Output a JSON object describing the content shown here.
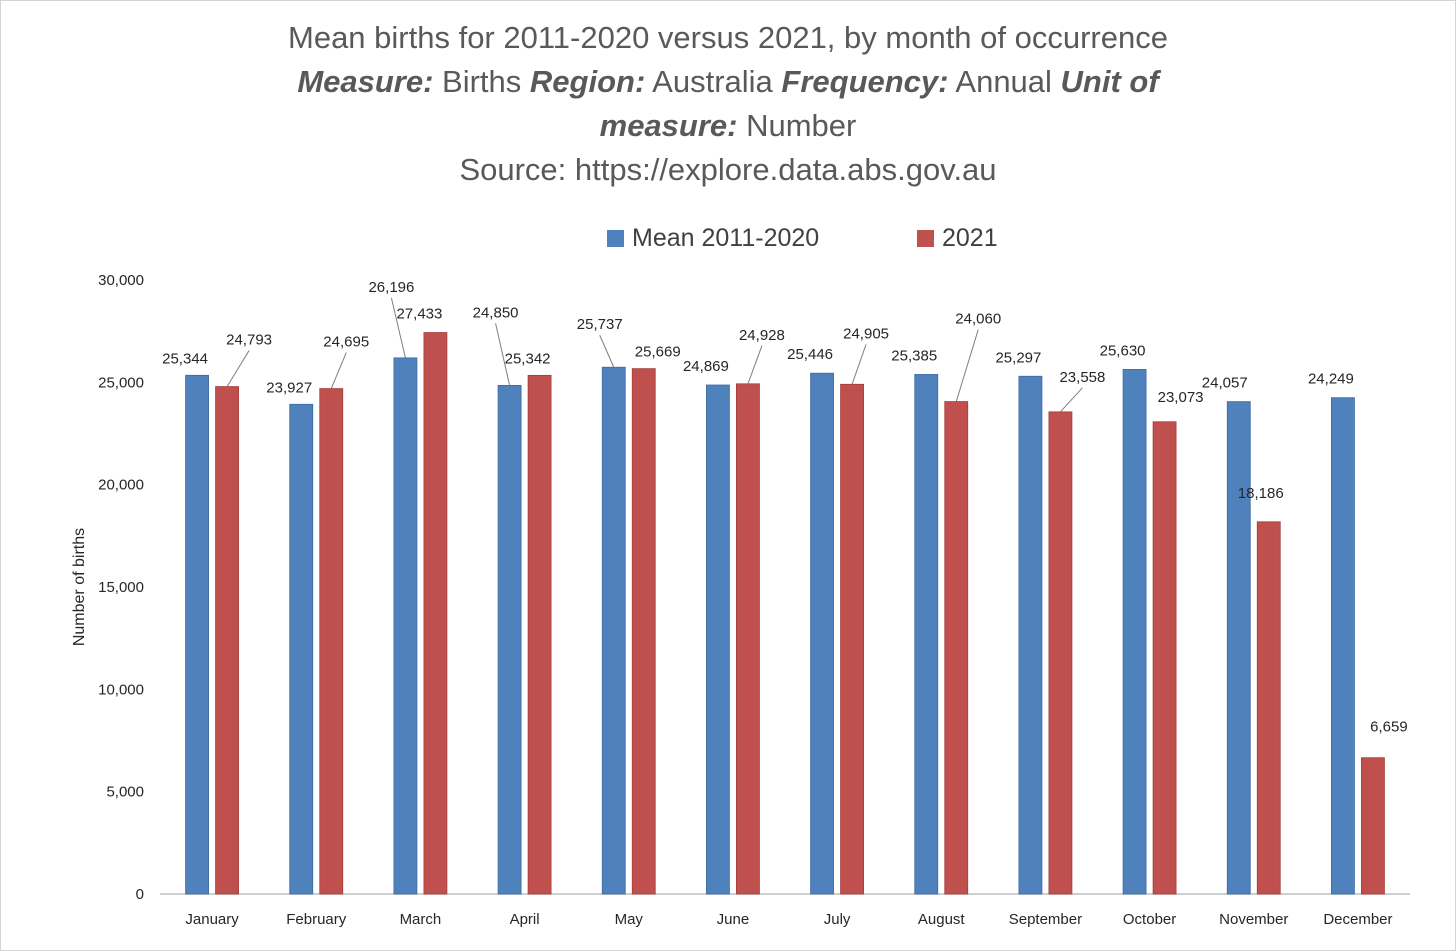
{
  "title": {
    "line1": "Mean births for 2011-2020 versus 2021, by month of occurrence",
    "measure_key": "Measure:",
    "measure_val": " Births ",
    "region_key": "Region:",
    "region_val": " Australia ",
    "frequency_key": "Frequency:",
    "frequency_val": " Annual ",
    "unit_key_1": "Unit of",
    "unit_key_2": "measure:",
    "unit_val": " Number",
    "source": "Source: https://explore.data.abs.gov.au"
  },
  "colors": {
    "mean": "#4f81bd",
    "y2021": "#c0504d",
    "axis": "#bfbfbf",
    "leader": "#7f7f7f"
  },
  "chart_data": {
    "type": "bar",
    "categories": [
      "January",
      "February",
      "March",
      "April",
      "May",
      "June",
      "July",
      "August",
      "September",
      "October",
      "November",
      "December"
    ],
    "series": [
      {
        "name": "Mean 2011-2020",
        "values": [
          25344,
          23927,
          26196,
          24850,
          25737,
          24869,
          25446,
          25385,
          25297,
          25630,
          24057,
          24249
        ],
        "labels": [
          "25,344",
          "23,927",
          "26,196",
          "24,850",
          "25,737",
          "24,869",
          "25,446",
          "25,385",
          "25,297",
          "25,630",
          "24,057",
          "24,249"
        ]
      },
      {
        "name": "2021",
        "values": [
          24793,
          24695,
          27433,
          25342,
          25669,
          24928,
          24905,
          24060,
          23558,
          23073,
          18186,
          6659
        ],
        "labels": [
          "24,793",
          "24,695",
          "27,433",
          "25,342",
          "25,669",
          "24,928",
          "24,905",
          "24,060",
          "23,558",
          "23,073",
          "18,186",
          "6,659"
        ]
      }
    ],
    "ylabel": "Number of births",
    "ylim": [
      0,
      30000
    ],
    "yticks": [
      "0",
      "5,000",
      "10,000",
      "15,000",
      "20,000",
      "25,000",
      "30,000"
    ],
    "grid": false,
    "legend": "top-center"
  }
}
